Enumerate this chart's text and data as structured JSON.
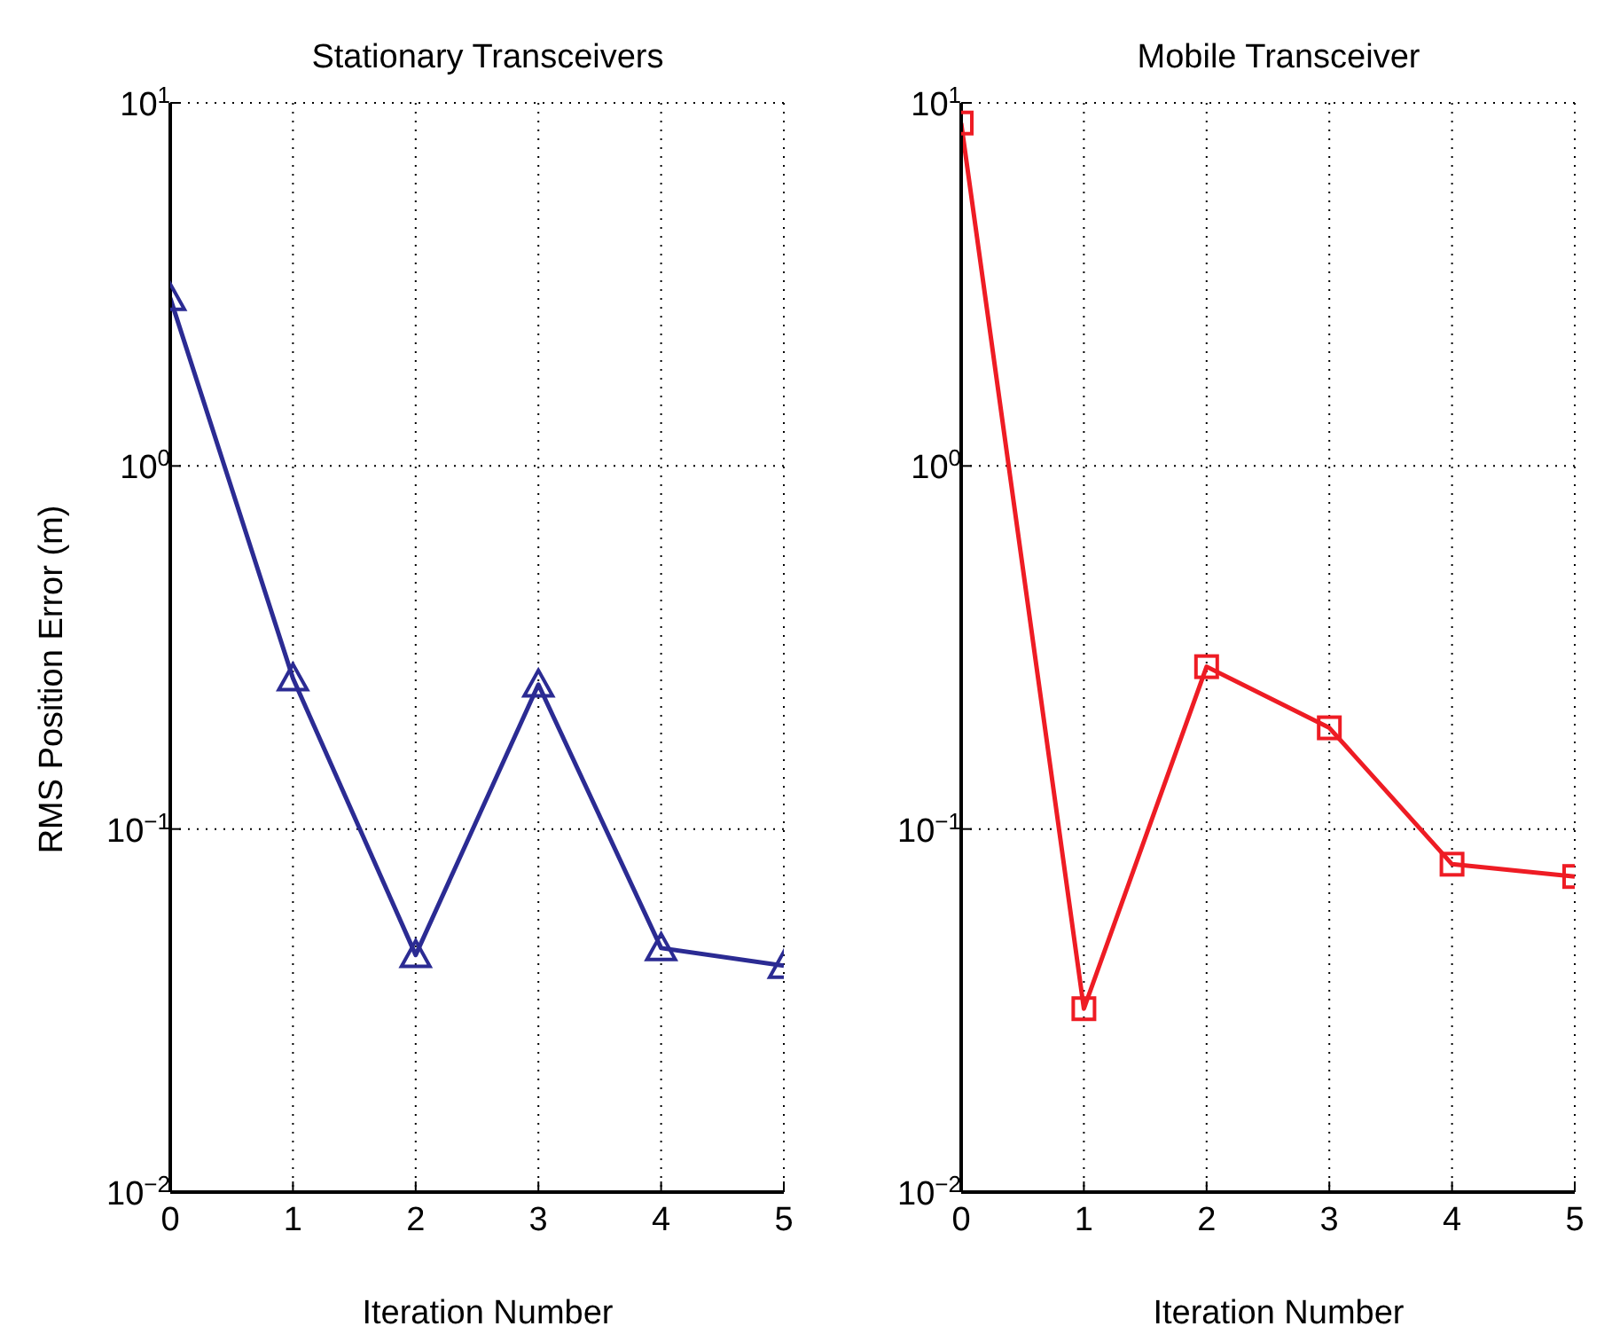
{
  "chart_data": [
    {
      "type": "line",
      "title": "Stationary Transceivers",
      "xlabel": "Iteration Number",
      "ylabel": "RMS Position Error (m)",
      "x": [
        0,
        1,
        2,
        3,
        4,
        5
      ],
      "xlim": [
        0,
        5
      ],
      "xticks": [
        0,
        1,
        2,
        3,
        4,
        5
      ],
      "log": "y",
      "ylim": [
        0.01,
        10
      ],
      "yticks": [
        {
          "value": 0.01,
          "label": "10$^{−2}$"
        },
        {
          "value": 0.1,
          "label": "10$^{−1}$"
        },
        {
          "value": 1,
          "label": "10$^{0}$"
        },
        {
          "value": 10,
          "label": "10$^{1}$"
        }
      ],
      "grid": true,
      "marker": "triangle",
      "line_style": "solid",
      "series": [
        {
          "color": "#2b2b93",
          "values": [
            2.9,
            0.26,
            0.045,
            0.25,
            0.047,
            0.042
          ]
        }
      ]
    },
    {
      "type": "line",
      "title": "Mobile Transceiver",
      "xlabel": "Iteration Number",
      "x": [
        0,
        1,
        2,
        3,
        4,
        5
      ],
      "xlim": [
        0,
        5
      ],
      "xticks": [
        0,
        1,
        2,
        3,
        4,
        5
      ],
      "log": "y",
      "ylim": [
        0.01,
        10
      ],
      "yticks": [
        {
          "value": 0.01,
          "label": "10$^{−2}$"
        },
        {
          "value": 0.1,
          "label": "10$^{−1}$"
        },
        {
          "value": 1,
          "label": "10$^{0}$"
        },
        {
          "value": 10,
          "label": "10$^{1}$"
        }
      ],
      "grid": true,
      "marker": "square",
      "line_style": "solid",
      "series": [
        {
          "color": "#ee1c24",
          "values": [
            8.8,
            0.032,
            0.28,
            0.19,
            0.08,
            0.074
          ]
        }
      ]
    }
  ]
}
